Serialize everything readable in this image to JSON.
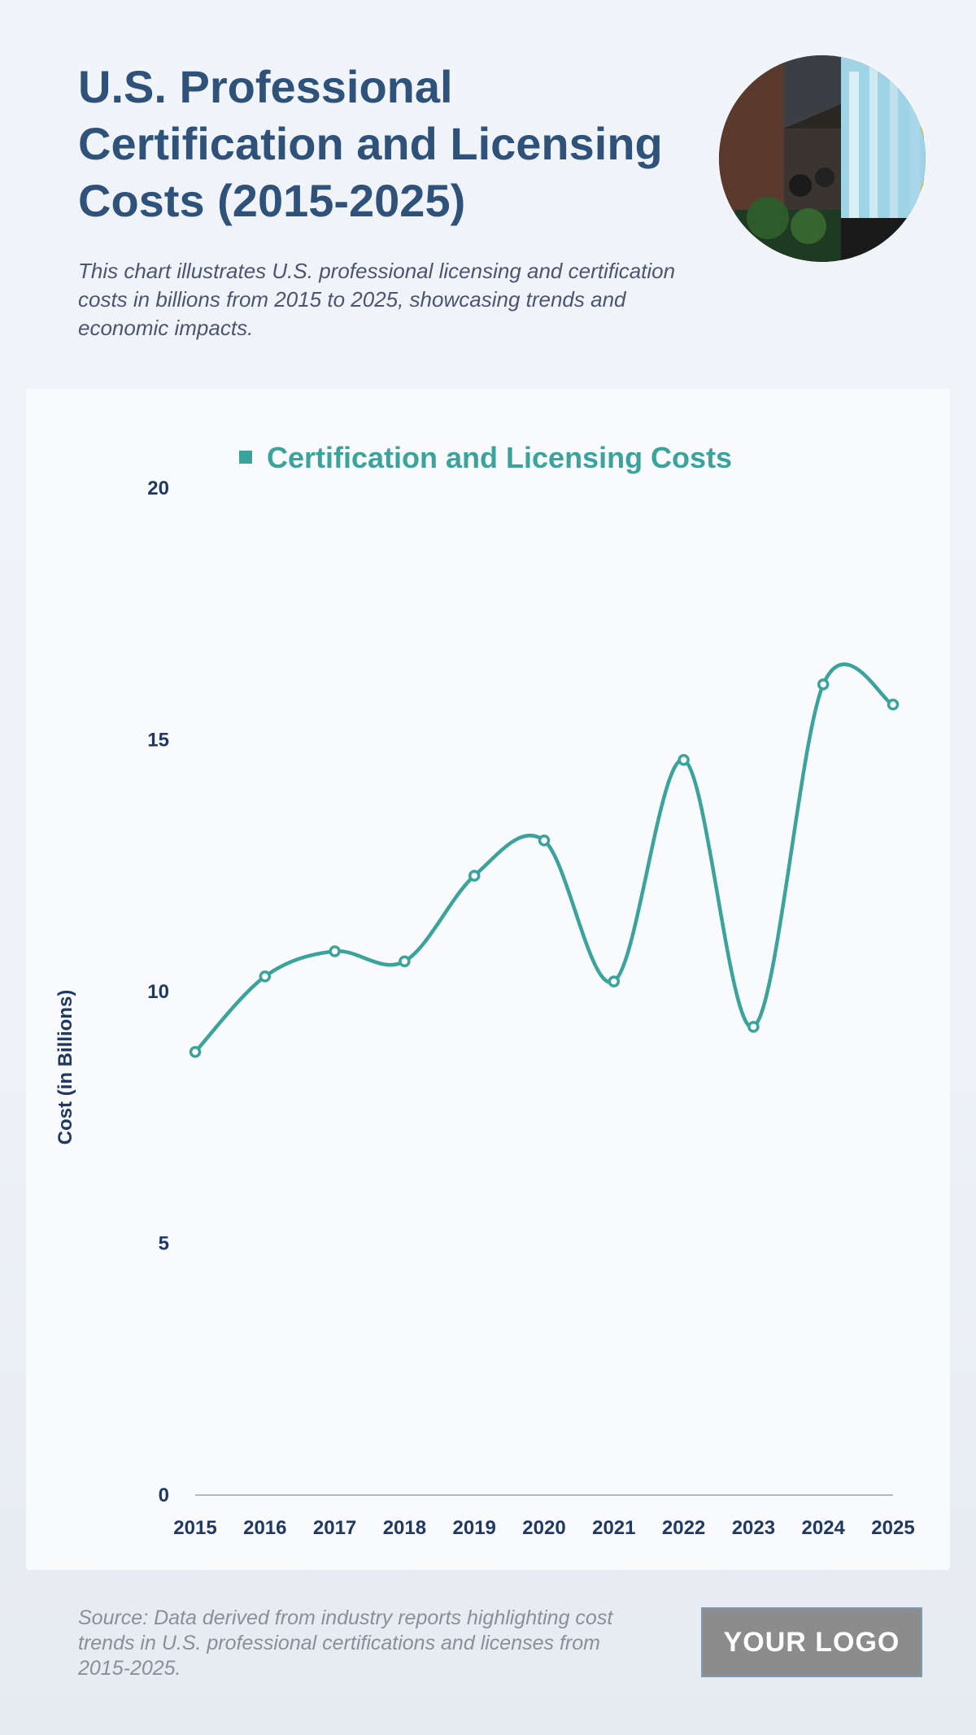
{
  "header": {
    "title": "U.S. Professional Certification and Licensing Costs (2015-2025)",
    "subtitle": "This chart illustrates U.S. professional licensing and certification costs in billions from 2015 to 2025, showcasing trends and economic impacts."
  },
  "photo": {
    "icon": "office-photo-icon"
  },
  "footer": {
    "source": "Source: Data derived from industry reports highlighting cost trends in U.S. professional certifications and licenses from 2015-2025.",
    "logo": "YOUR LOGO"
  },
  "colors": {
    "line": "#3aa39c",
    "title": "#2f527a",
    "axis_text": "#1f3864"
  },
  "chart_data": {
    "type": "line",
    "title": "",
    "xlabel": "",
    "ylabel": "Cost (in Billions)",
    "legend": {
      "position": "top-center",
      "entries": [
        "Certification and Licensing Costs"
      ]
    },
    "categories": [
      "2015",
      "2016",
      "2017",
      "2018",
      "2019",
      "2020",
      "2021",
      "2022",
      "2023",
      "2024",
      "2025"
    ],
    "series": [
      {
        "name": "Certification and Licensing Costs",
        "values": [
          8.8,
          10.3,
          10.8,
          10.6,
          12.3,
          13.0,
          10.2,
          14.6,
          9.3,
          16.1,
          15.7
        ]
      }
    ],
    "ylim": [
      0,
      20
    ],
    "yticks": [
      0,
      5,
      10,
      15,
      20
    ],
    "grid": false,
    "smooth": true
  }
}
